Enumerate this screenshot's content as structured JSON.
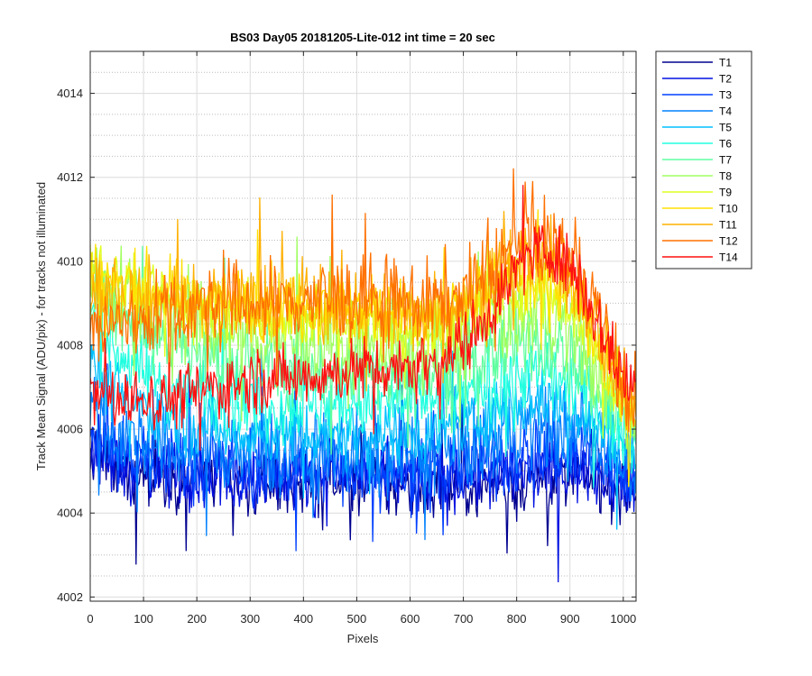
{
  "chart_data": {
    "type": "line",
    "title": "BS03 Day05 20181205-Lite-012 int time = 20 sec",
    "xlabel": "Pixels",
    "ylabel": "Track Mean Signal (ADU/pix) - for tracks not illuminated",
    "xlim": [
      0,
      1024
    ],
    "ylim": [
      4001.9,
      4015
    ],
    "xticks": [
      0,
      100,
      200,
      300,
      400,
      500,
      600,
      700,
      800,
      900,
      1000
    ],
    "yticks": [
      4002,
      4004,
      4006,
      4008,
      4010,
      4012,
      4014
    ],
    "grid": true,
    "minor_grid": true,
    "legend_position": "outside-top-right",
    "x": [
      0,
      40,
      80,
      120,
      160,
      200,
      240,
      280,
      320,
      360,
      400,
      440,
      480,
      520,
      560,
      600,
      640,
      680,
      720,
      760,
      800,
      840,
      880,
      920,
      960,
      1000,
      1024
    ],
    "series": [
      {
        "name": "T1",
        "color": "#00008f",
        "values": [
          4005.3,
          4005.0,
          4004.9,
          4004.9,
          4004.8,
          4004.8,
          4004.8,
          4004.7,
          4004.7,
          4004.7,
          4004.7,
          4004.7,
          4004.7,
          4004.7,
          4004.6,
          4004.6,
          4004.6,
          4004.6,
          4004.7,
          4004.7,
          4004.7,
          4004.8,
          4004.8,
          4004.9,
          4004.8,
          4004.6,
          4004.6
        ]
      },
      {
        "name": "T2",
        "color": "#0010e0",
        "values": [
          4005.5,
          4005.2,
          4005.1,
          4005.0,
          4005.0,
          4005.0,
          4004.9,
          4004.9,
          4004.9,
          4004.9,
          4004.9,
          4004.9,
          4004.9,
          4004.9,
          4004.8,
          4004.8,
          4004.8,
          4004.8,
          4004.9,
          4004.9,
          4004.9,
          4005.0,
          4005.0,
          4005.1,
          4005.0,
          4004.8,
          4004.8
        ]
      },
      {
        "name": "T3",
        "color": "#0040ff",
        "values": [
          4005.8,
          4005.5,
          4005.3,
          4005.2,
          4005.2,
          4005.1,
          4005.1,
          4005.1,
          4005.1,
          4005.1,
          4005.1,
          4005.1,
          4005.1,
          4005.1,
          4005.0,
          4005.0,
          4005.0,
          4005.1,
          4005.2,
          4005.2,
          4005.3,
          4005.4,
          4005.4,
          4005.4,
          4005.2,
          4005.0,
          4005.0
        ]
      },
      {
        "name": "T4",
        "color": "#0080ff",
        "values": [
          4006.4,
          4006.0,
          4005.7,
          4005.6,
          4005.5,
          4005.5,
          4005.4,
          4005.4,
          4005.4,
          4005.4,
          4005.4,
          4005.4,
          4005.4,
          4005.4,
          4005.4,
          4005.4,
          4005.4,
          4005.5,
          4005.6,
          4005.8,
          4005.9,
          4006.0,
          4006.0,
          4005.9,
          4005.6,
          4005.3,
          4005.2
        ]
      },
      {
        "name": "T5",
        "color": "#00c0ff",
        "values": [
          4007.6,
          4007.0,
          4006.6,
          4006.4,
          4006.2,
          4006.1,
          4006.0,
          4005.9,
          4005.9,
          4005.9,
          4005.9,
          4005.9,
          4005.9,
          4005.9,
          4005.9,
          4005.9,
          4005.9,
          4006.0,
          4006.2,
          4006.4,
          4006.6,
          4006.7,
          4006.6,
          4006.4,
          4006.0,
          4005.6,
          4005.4
        ]
      },
      {
        "name": "T6",
        "color": "#20ffe0",
        "values": [
          4008.6,
          4008.0,
          4007.5,
          4007.2,
          4007.0,
          4006.9,
          4006.8,
          4006.7,
          4006.6,
          4006.6,
          4006.6,
          4006.6,
          4006.6,
          4006.6,
          4006.6,
          4006.6,
          4006.6,
          4006.7,
          4006.9,
          4007.1,
          4007.3,
          4007.4,
          4007.2,
          4006.9,
          4006.4,
          4005.9,
          4005.7
        ]
      },
      {
        "name": "T7",
        "color": "#60ffa0",
        "values": [
          4009.3,
          4008.9,
          4008.5,
          4008.2,
          4008.0,
          4007.8,
          4007.6,
          4007.5,
          4007.4,
          4007.4,
          4007.4,
          4007.4,
          4007.4,
          4007.4,
          4007.4,
          4007.3,
          4007.3,
          4007.4,
          4007.6,
          4007.8,
          4008.0,
          4008.1,
          4007.9,
          4007.4,
          4006.8,
          4006.2,
          4006.0
        ]
      },
      {
        "name": "T8",
        "color": "#a0ff60",
        "values": [
          4009.7,
          4009.4,
          4009.1,
          4008.9,
          4008.7,
          4008.5,
          4008.3,
          4008.2,
          4008.1,
          4008.1,
          4008.1,
          4008.1,
          4008.0,
          4008.0,
          4008.0,
          4007.9,
          4007.9,
          4008.0,
          4008.2,
          4008.5,
          4008.7,
          4008.8,
          4008.5,
          4008.0,
          4007.2,
          4006.4,
          4006.2
        ]
      },
      {
        "name": "T9",
        "color": "#e0ff20",
        "values": [
          4009.8,
          4009.6,
          4009.4,
          4009.2,
          4009.1,
          4009.0,
          4008.9,
          4008.8,
          4008.7,
          4008.7,
          4008.7,
          4008.7,
          4008.6,
          4008.6,
          4008.5,
          4008.4,
          4008.4,
          4008.5,
          4008.8,
          4009.1,
          4009.3,
          4009.4,
          4009.2,
          4008.6,
          4007.6,
          4006.6,
          4006.4
        ]
      },
      {
        "name": "T10",
        "color": "#ffe000",
        "values": [
          4009.6,
          4009.5,
          4009.4,
          4009.3,
          4009.2,
          4009.1,
          4009.1,
          4009.0,
          4009.0,
          4009.0,
          4009.0,
          4009.0,
          4008.9,
          4008.9,
          4008.8,
          4008.7,
          4008.7,
          4008.8,
          4009.1,
          4009.4,
          4009.7,
          4009.8,
          4009.5,
          4008.9,
          4007.8,
          4006.7,
          4006.5
        ]
      },
      {
        "name": "T11",
        "color": "#ffb000",
        "values": [
          4009.3,
          4009.2,
          4009.1,
          4009.1,
          4009.0,
          4009.0,
          4009.0,
          4009.0,
          4009.0,
          4009.0,
          4009.0,
          4009.0,
          4009.0,
          4008.9,
          4008.9,
          4008.8,
          4008.8,
          4008.9,
          4009.2,
          4009.6,
          4010.0,
          4010.1,
          4009.9,
          4009.3,
          4008.1,
          4006.8,
          4006.6
        ]
      },
      {
        "name": "T12",
        "color": "#ff7000",
        "values": [
          4008.3,
          4008.5,
          4008.6,
          4008.7,
          4008.8,
          4008.9,
          4008.9,
          4009.0,
          4009.0,
          4009.0,
          4009.1,
          4009.1,
          4009.1,
          4009.1,
          4009.1,
          4009.0,
          4009.0,
          4009.1,
          4009.4,
          4009.9,
          4010.3,
          4010.5,
          4010.3,
          4009.7,
          4008.5,
          4007.0,
          4006.7
        ]
      },
      {
        "name": "T14",
        "color": "#ff1010",
        "values": [
          4006.9,
          4006.7,
          4006.7,
          4006.7,
          4006.8,
          4006.9,
          4007.0,
          4007.1,
          4007.2,
          4007.2,
          4007.3,
          4007.3,
          4007.4,
          4007.4,
          4007.5,
          4007.5,
          4007.6,
          4007.8,
          4008.3,
          4009.0,
          4009.8,
          4010.3,
          4010.2,
          4009.5,
          4008.3,
          4007.2,
          4007.0
        ]
      }
    ]
  }
}
